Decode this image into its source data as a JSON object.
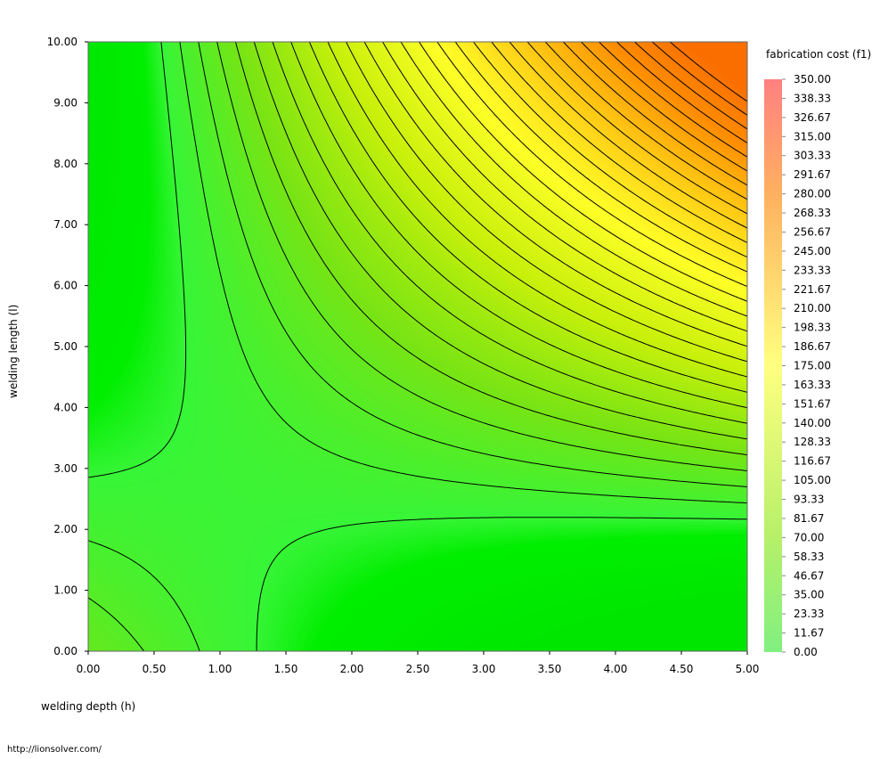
{
  "chart_data": {
    "type": "heatmap",
    "subtype": "filled-contour",
    "xlabel": "welding depth (h)",
    "ylabel": "welding length (l)",
    "xlim": [
      0,
      5
    ],
    "ylim": [
      0,
      10
    ],
    "x_ticks": [
      "0.00",
      "0.50",
      "1.00",
      "1.50",
      "2.00",
      "2.50",
      "3.00",
      "3.50",
      "4.00",
      "4.50",
      "5.00"
    ],
    "y_ticks": [
      "0.00",
      "1.00",
      "2.00",
      "3.00",
      "4.00",
      "5.00",
      "6.00",
      "7.00",
      "8.00",
      "9.00",
      "10.00"
    ],
    "colorbar": {
      "title": "fabrication cost (f1)",
      "min": 0,
      "max": 350,
      "ticks": [
        "350.00",
        "338.33",
        "326.67",
        "315.00",
        "303.33",
        "291.67",
        "280.00",
        "268.33",
        "256.67",
        "245.00",
        "233.33",
        "221.67",
        "210.00",
        "198.33",
        "186.67",
        "175.00",
        "163.33",
        "151.67",
        "140.00",
        "128.33",
        "116.67",
        "105.00",
        "93.33",
        "81.67",
        "70.00",
        "58.33",
        "46.67",
        "35.00",
        "23.33",
        "11.67",
        "0.00"
      ],
      "contour_interval": 11.67
    },
    "colors": {
      "low": "#80f080",
      "mid_green": "#00ee00",
      "yellow": "#ffff30",
      "orange": "#ff9000",
      "high": "#ff8080",
      "contour": "#000000"
    },
    "grid": false,
    "legend_placement": "right"
  },
  "footer": {
    "url": "http://lionsolver.com/"
  }
}
